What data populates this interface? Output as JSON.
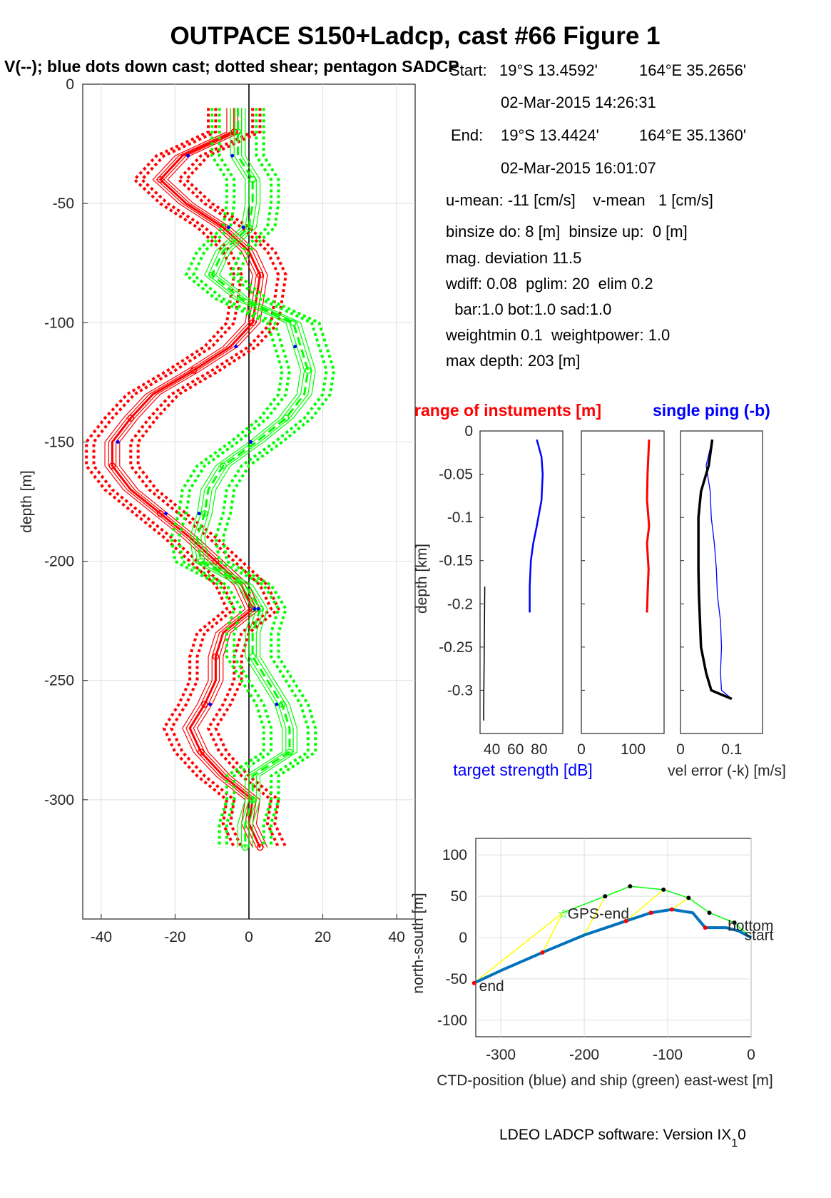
{
  "figure": {
    "title": "OUTPACE S150+Ladcp, cast #66  Figure 1",
    "subtitle": "V(--); blue dots down cast; dotted shear; pentagon SADCP",
    "footer": "LDEO LADCP software: Version IX",
    "footer_sub": "1",
    "footer_tail": "0"
  },
  "info": {
    "start_label": "Start:",
    "start_lat": "19°S 13.4592'",
    "start_lon": "164°E 35.2656'",
    "start_time": "02-Mar-2015 14:26:31",
    "end_label": "End:",
    "end_lat": "19°S 13.4424'",
    "end_lon": "164°E 35.1360'",
    "end_time": "02-Mar-2015 16:01:07",
    "lines": [
      "u-mean: -11 [cm/s]    v-mean   1 [cm/s]",
      "binsize do: 8 [m]  binsize up:  0 [m]",
      "mag. deviation 11.5",
      "wdiff: 0.08  pglim: 20  elim 0.2",
      "  bar:1.0 bot:1.0 sad:1.0",
      "weightmin 0.1  weightpower: 1.0",
      "max depth: 203 [m]"
    ]
  },
  "colors": {
    "u": "#ff0000",
    "v": "#00ff00",
    "dots": "#0000ff",
    "ctd": "#0072bd",
    "ship": "#00ff00",
    "link": "#ffff00",
    "axis": "#262626"
  },
  "chart_data": [
    {
      "type": "line",
      "ylabel": "depth [m]",
      "xlim": [
        -45,
        45
      ],
      "ylim": [
        -350,
        0
      ],
      "xticks": [
        "-40",
        "-20",
        "0",
        "20",
        "40"
      ],
      "yticks": [
        "0",
        "-50",
        "-100",
        "-150",
        "-200",
        "-250",
        "-300"
      ],
      "depth": [
        -10,
        -20,
        -30,
        -40,
        -50,
        -60,
        -70,
        -80,
        -90,
        -100,
        -110,
        -120,
        -130,
        -140,
        -150,
        -160,
        -170,
        -180,
        -190,
        -200,
        -210,
        -220,
        -230,
        -240,
        -250,
        -260,
        -270,
        -280,
        -290,
        -300,
        -310,
        -320
      ],
      "series": [
        {
          "values": [
            -4,
            -4,
            -18,
            -24,
            -17,
            -7,
            0,
            3,
            2,
            1,
            -5,
            -15,
            -26,
            -32,
            -37,
            -37,
            -32,
            -24,
            -16,
            -9,
            -2,
            1,
            -7,
            -9,
            -9,
            -12,
            -16,
            -13,
            -7,
            1,
            0,
            3
          ]
        },
        {
          "values": [
            -3,
            -3,
            -3,
            1,
            1,
            0,
            -7,
            -10,
            -2,
            12,
            14,
            16,
            15,
            10,
            2,
            -7,
            -11,
            -12,
            -14,
            -13,
            -1,
            3,
            1,
            1,
            5,
            9,
            11,
            11,
            1,
            1,
            -1,
            -1
          ]
        }
      ]
    },
    {
      "type": "line",
      "xlabel": "target strength [dB]",
      "ylabel": "depth [km]",
      "title_left": "range of instuments [m]",
      "title_right": "single ping (-b)",
      "ylim": [
        -0.35,
        0
      ],
      "panels": [
        {
          "xlim": [
            30,
            100
          ],
          "xticks": [
            "40",
            "60",
            "80"
          ],
          "depth": [
            -0.01,
            -0.03,
            -0.05,
            -0.08,
            -0.11,
            -0.13,
            -0.15,
            -0.18,
            -0.21
          ],
          "values": [
            78,
            82,
            83,
            82,
            78,
            75,
            73,
            72,
            72
          ]
        },
        {
          "xlim": [
            0,
            160
          ],
          "xticks": [
            "0",
            "100"
          ],
          "depth": [
            -0.01,
            -0.05,
            -0.08,
            -0.11,
            -0.13,
            -0.16,
            -0.19,
            -0.21
          ],
          "values": [
            131,
            128,
            127,
            131,
            127,
            130,
            128,
            127
          ]
        },
        {
          "xlabel": "vel error (-k) [m/s]",
          "xlim": [
            0,
            0.16
          ],
          "xticks": [
            "0",
            "0.1"
          ],
          "depth": [
            -0.01,
            -0.04,
            -0.07,
            -0.1,
            -0.13,
            -0.16,
            -0.19,
            -0.22,
            -0.25,
            -0.28,
            -0.3,
            -0.31
          ],
          "values": [
            0.062,
            0.055,
            0.04,
            0.035,
            0.035,
            0.035,
            0.036,
            0.038,
            0.04,
            0.05,
            0.06,
            0.1
          ],
          "values2": [
            0.062,
            0.05,
            0.058,
            0.06,
            0.066,
            0.07,
            0.072,
            0.078,
            0.08,
            0.078,
            0.08,
            0.1
          ]
        }
      ]
    },
    {
      "type": "line",
      "xlabel": "CTD-position (blue) and ship (green) east-west [m]",
      "ylabel": "north-south [m]",
      "xlim": [
        -330,
        0
      ],
      "ylim": [
        -120,
        120
      ],
      "xticks": [
        "-300",
        "-200",
        "-100",
        "0"
      ],
      "yticks": [
        "100",
        "50",
        "0",
        "-50",
        "-100"
      ],
      "labels": [
        "GPS-end",
        "bottom",
        "start",
        "end"
      ],
      "ctd_x": [
        0,
        -15,
        -30,
        -55,
        -70,
        -95,
        -120,
        -150,
        -200,
        -250,
        -300,
        -332
      ],
      "ctd_y": [
        0,
        8,
        12,
        12,
        30,
        34,
        30,
        20,
        3,
        -18,
        -40,
        -55
      ],
      "ship_x": [
        0,
        -20,
        -50,
        -75,
        -105,
        -145,
        -175,
        -226
      ],
      "ship_y": [
        0,
        18,
        30,
        48,
        58,
        62,
        50,
        30
      ]
    }
  ]
}
